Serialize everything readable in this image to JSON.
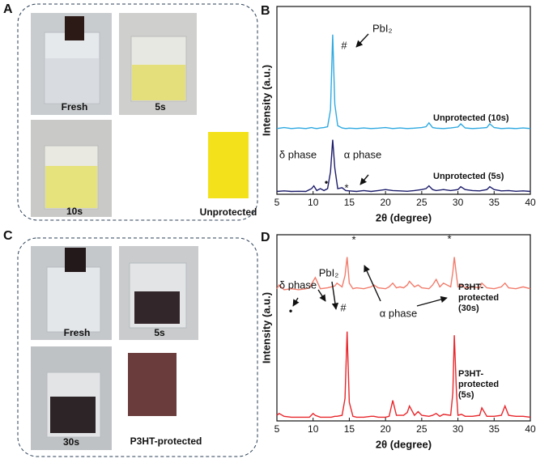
{
  "panels": {
    "letters": [
      "A",
      "B",
      "C",
      "D"
    ],
    "A": {
      "captions": [
        "Fresh",
        "5s",
        "10s",
        "Unprotected"
      ]
    },
    "C": {
      "captions": [
        "Fresh",
        "5s",
        "30s",
        "P3HT-protected"
      ]
    }
  },
  "chart_data": [
    {
      "type": "line",
      "x_label": "2θ (degree)",
      "y_label": "Intensity (a.u.)",
      "xlim": [
        5,
        40
      ],
      "xticks": [
        5,
        10,
        15,
        20,
        25,
        30,
        35,
        40
      ],
      "ylim": [
        0,
        100
      ],
      "annotations": [
        "PbI₂",
        "#",
        "δ phase",
        "α phase",
        "•",
        "*"
      ],
      "x": [
        5,
        6,
        7,
        8,
        9,
        9.8,
        10.1,
        10.5,
        11,
        11.5,
        12,
        12.4,
        12.7,
        13,
        13.4,
        14,
        14.5,
        15,
        16,
        17,
        18,
        19,
        20,
        21,
        22,
        23,
        24,
        25,
        25.6,
        26,
        26.5,
        27,
        28,
        29,
        30,
        30.4,
        31,
        32,
        33,
        34,
        34.4,
        35,
        36,
        37,
        38,
        39,
        40
      ],
      "series": [
        {
          "name": "Unprotected (10s)",
          "color": "#2ea9e1",
          "values": [
            35,
            35.5,
            35,
            35.3,
            35,
            35.5,
            35.2,
            35,
            35.3,
            35.5,
            36,
            45,
            85,
            48,
            36.5,
            35.3,
            35,
            35.2,
            35,
            35.3,
            35,
            35.2,
            35.5,
            35,
            35.3,
            35,
            35.2,
            35.5,
            36,
            38,
            35.5,
            35.2,
            35,
            35.3,
            35.8,
            37.5,
            35.3,
            35,
            35.2,
            35.5,
            37.5,
            35.5,
            35,
            35.2,
            35,
            35.3,
            35
          ]
        },
        {
          "name": "Unprotected (5s)",
          "color": "#1c1c6b",
          "values": [
            1.5,
            1.8,
            1.5,
            1.6,
            1.5,
            3,
            4.5,
            2,
            3,
            2,
            3,
            12,
            29,
            14,
            3,
            3.5,
            2,
            1.8,
            1.5,
            2,
            1.5,
            2,
            2.5,
            2,
            1.8,
            1.6,
            2,
            2.5,
            3,
            4.5,
            2.5,
            2,
            2.5,
            2,
            2.5,
            4,
            2.5,
            2,
            1.8,
            2.5,
            4,
            2.5,
            1.8,
            2,
            1.6,
            1.8,
            1.5
          ]
        }
      ]
    },
    {
      "type": "line",
      "x_label": "2θ (degree)",
      "y_label": "Intensity (a.u.)",
      "xlim": [
        5,
        40
      ],
      "xticks": [
        5,
        10,
        15,
        20,
        25,
        30,
        35,
        40
      ],
      "ylim": [
        0,
        100
      ],
      "annotations": [
        "δ phase",
        "PbI₂",
        "α phase",
        "*",
        "*",
        "#",
        "•"
      ],
      "x": [
        5,
        5.3,
        6,
        7,
        8,
        9,
        9.5,
        10,
        10.3,
        11,
        12,
        12.5,
        13,
        13.3,
        14,
        14.4,
        14.7,
        15,
        15.5,
        16,
        17,
        18,
        18.4,
        19,
        20,
        20.5,
        21,
        21.5,
        22,
        22.5,
        23,
        23.3,
        24,
        24.5,
        25,
        26,
        26.5,
        27,
        27.5,
        28,
        29,
        29.3,
        29.5,
        29.8,
        30,
        30.5,
        31,
        32,
        33,
        33.3,
        34,
        35,
        36,
        36.5,
        37,
        38,
        39,
        40
      ],
      "series": [
        {
          "name": "P3HT-protected (30s)",
          "color": "#f27c6c",
          "values": [
            71,
            73,
            70.5,
            71,
            70.5,
            71,
            71.5,
            75,
            77,
            71,
            71.5,
            72,
            72.5,
            74,
            72,
            78,
            88,
            74,
            71,
            71.5,
            71,
            72,
            73,
            71.5,
            71,
            72,
            74,
            71.5,
            72,
            71.5,
            73,
            75,
            72,
            73,
            71.5,
            71,
            73,
            76,
            72,
            74,
            72,
            80,
            88,
            78,
            72,
            73,
            71.5,
            72,
            71.5,
            74,
            71.5,
            71,
            72,
            74,
            71.5,
            71,
            72,
            71
          ]
        },
        {
          "name": "P3HT-protected (5s)",
          "color": "#e8262b",
          "values": [
            3,
            4,
            2.5,
            2,
            2,
            2,
            2,
            4,
            3,
            2,
            2,
            2,
            2.5,
            2.5,
            3,
            12,
            48,
            10,
            2.5,
            2,
            2,
            2.5,
            2.5,
            2,
            2,
            2.5,
            11,
            3,
            3,
            3,
            4.5,
            8,
            3,
            5,
            3,
            2.5,
            3,
            4,
            2.5,
            3.5,
            3,
            15,
            46,
            15,
            3,
            3.5,
            2.5,
            2.5,
            3,
            7,
            2.5,
            2.5,
            3,
            8,
            3,
            2.5,
            2.5,
            2
          ]
        }
      ]
    }
  ]
}
